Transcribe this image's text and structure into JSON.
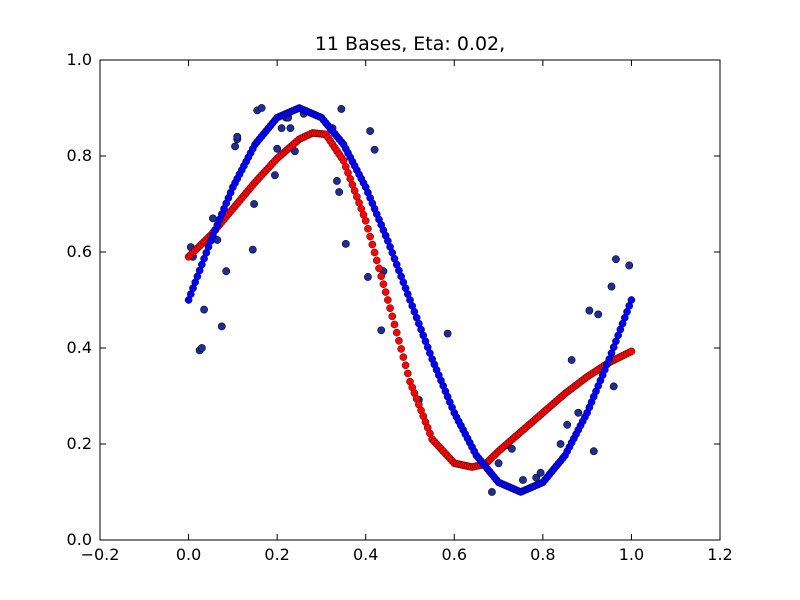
{
  "chart_data": {
    "type": "scatter",
    "title": "11 Bases, Eta: 0.02,",
    "xlabel": "",
    "ylabel": "",
    "xlim": [
      -0.2,
      1.2
    ],
    "ylim": [
      0.0,
      1.0
    ],
    "xticks": [
      "−0.2",
      "0.0",
      "0.2",
      "0.4",
      "0.6",
      "0.8",
      "1.0",
      "1.2"
    ],
    "yticks": [
      "0.0",
      "0.2",
      "0.4",
      "0.6",
      "0.8",
      "1.0"
    ],
    "xtick_values": [
      -0.2,
      0.0,
      0.2,
      0.4,
      0.6,
      0.8,
      1.0,
      1.2
    ],
    "ytick_values": [
      0.0,
      0.2,
      0.4,
      0.6,
      0.8,
      1.0
    ],
    "grid": false,
    "series": [
      {
        "color": "#1f2f8f",
        "kind": "observed-points",
        "points": [
          [
            0.005,
            0.61
          ],
          [
            0.01,
            0.59
          ],
          [
            0.025,
            0.395
          ],
          [
            0.03,
            0.4
          ],
          [
            0.035,
            0.48
          ],
          [
            0.055,
            0.67
          ],
          [
            0.065,
            0.625
          ],
          [
            0.075,
            0.445
          ],
          [
            0.085,
            0.56
          ],
          [
            0.105,
            0.82
          ],
          [
            0.11,
            0.835
          ],
          [
            0.11,
            0.84
          ],
          [
            0.145,
            0.605
          ],
          [
            0.148,
            0.7
          ],
          [
            0.155,
            0.895
          ],
          [
            0.165,
            0.9
          ],
          [
            0.195,
            0.76
          ],
          [
            0.2,
            0.815
          ],
          [
            0.21,
            0.858
          ],
          [
            0.22,
            0.88
          ],
          [
            0.225,
            0.88
          ],
          [
            0.23,
            0.858
          ],
          [
            0.24,
            0.81
          ],
          [
            0.26,
            0.888
          ],
          [
            0.325,
            0.858
          ],
          [
            0.335,
            0.748
          ],
          [
            0.34,
            0.725
          ],
          [
            0.345,
            0.898
          ],
          [
            0.355,
            0.617
          ],
          [
            0.405,
            0.548
          ],
          [
            0.41,
            0.852
          ],
          [
            0.42,
            0.813
          ],
          [
            0.435,
            0.437
          ],
          [
            0.44,
            0.56
          ],
          [
            0.52,
            0.292
          ],
          [
            0.585,
            0.43
          ],
          [
            0.685,
            0.1
          ],
          [
            0.7,
            0.16
          ],
          [
            0.72,
            0.198
          ],
          [
            0.73,
            0.19
          ],
          [
            0.755,
            0.125
          ],
          [
            0.785,
            0.13
          ],
          [
            0.795,
            0.14
          ],
          [
            0.84,
            0.2
          ],
          [
            0.855,
            0.24
          ],
          [
            0.865,
            0.375
          ],
          [
            0.88,
            0.265
          ],
          [
            0.905,
            0.478
          ],
          [
            0.915,
            0.185
          ],
          [
            0.925,
            0.47
          ],
          [
            0.955,
            0.528
          ],
          [
            0.96,
            0.32
          ],
          [
            0.965,
            0.585
          ],
          [
            0.995,
            0.572
          ]
        ]
      },
      {
        "color": "#ff0000",
        "kind": "fitted-curve",
        "x": [
          0.0,
          0.05,
          0.1,
          0.15,
          0.2,
          0.25,
          0.28,
          0.31,
          0.35,
          0.4,
          0.45,
          0.5,
          0.55,
          0.6,
          0.64,
          0.67,
          0.7,
          0.75,
          0.8,
          0.85,
          0.9,
          0.95,
          1.0
        ],
        "y": [
          0.59,
          0.635,
          0.69,
          0.745,
          0.795,
          0.835,
          0.848,
          0.845,
          0.79,
          0.665,
          0.5,
          0.33,
          0.21,
          0.16,
          0.152,
          0.158,
          0.185,
          0.225,
          0.265,
          0.305,
          0.34,
          0.37,
          0.393
        ]
      },
      {
        "color": "#0000ff",
        "kind": "target-curve",
        "x": [
          0.0,
          0.05,
          0.1,
          0.15,
          0.2,
          0.25,
          0.3,
          0.35,
          0.4,
          0.45,
          0.5,
          0.55,
          0.6,
          0.65,
          0.7,
          0.75,
          0.8,
          0.85,
          0.9,
          0.95,
          1.0
        ],
        "y": [
          0.5,
          0.623,
          0.735,
          0.824,
          0.88,
          0.9,
          0.88,
          0.824,
          0.735,
          0.623,
          0.5,
          0.377,
          0.265,
          0.176,
          0.12,
          0.1,
          0.12,
          0.176,
          0.265,
          0.377,
          0.5
        ]
      }
    ]
  }
}
